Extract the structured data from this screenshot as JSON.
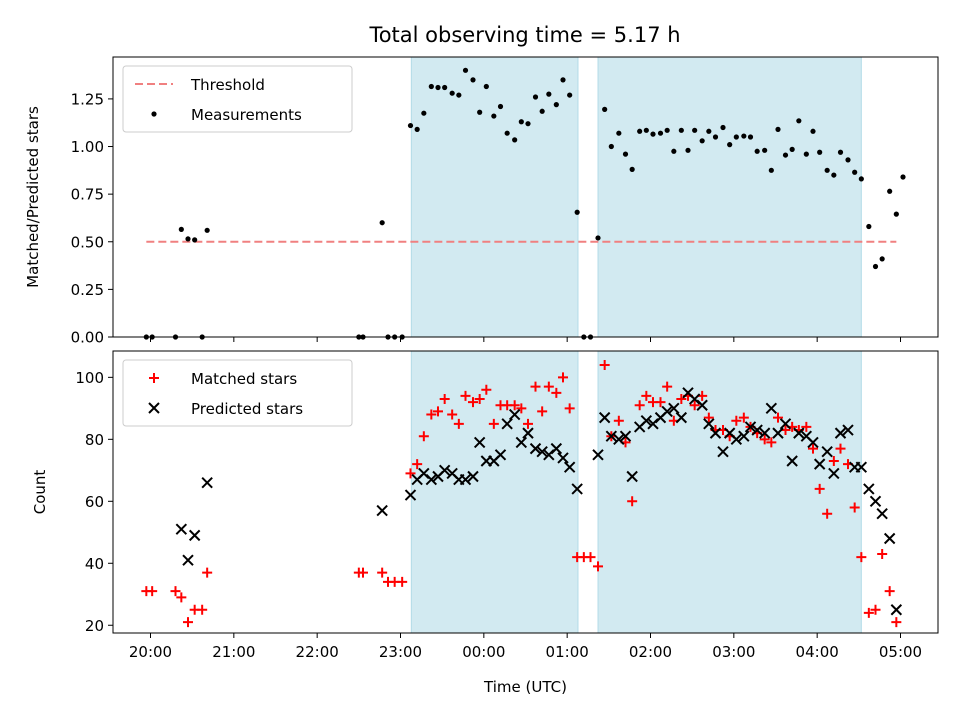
{
  "figure_title": "Total observing time = 5.17 h",
  "chart_data": [
    {
      "type": "scatter",
      "ylabel": "Matched/Predicted stars",
      "xlim": [
        19.55,
        29.45
      ],
      "ylim": [
        0,
        1.47
      ],
      "yticks": [
        0,
        0.25,
        0.5,
        0.75,
        1.0,
        1.25
      ],
      "ytick_labels": [
        "0.00",
        "0.25",
        "0.50",
        "0.75",
        "1.00",
        "1.25"
      ],
      "xticks": [
        20,
        21,
        22,
        23,
        24,
        25,
        26,
        27,
        28,
        29
      ],
      "xtick_labels": [
        "20:00",
        "21:00",
        "22:00",
        "23:00",
        "00:00",
        "01:00",
        "02:00",
        "03:00",
        "04:00",
        "05:00"
      ],
      "show_xtick_labels": false,
      "shaded_intervals": [
        [
          23.13,
          25.13
        ],
        [
          25.37,
          28.53
        ]
      ],
      "shade_color": "#add8e6",
      "legend_position": "upper left",
      "lines": [
        {
          "name": "Threshold",
          "x": [
            19.95,
            28.95
          ],
          "y": [
            0.5,
            0.5
          ],
          "color": "#f08080",
          "style": "dashed"
        }
      ],
      "series": [
        {
          "name": "Measurements",
          "marker": "dot",
          "color": "#000000",
          "points": [
            [
              19.95,
              0.0
            ],
            [
              20.02,
              0.0
            ],
            [
              20.3,
              0.0
            ],
            [
              20.37,
              0.565
            ],
            [
              20.45,
              0.515
            ],
            [
              20.53,
              0.51
            ],
            [
              20.62,
              0.0
            ],
            [
              20.68,
              0.56
            ],
            [
              22.5,
              0.0
            ],
            [
              22.55,
              0.0
            ],
            [
              22.78,
              0.6
            ],
            [
              22.85,
              0.0
            ],
            [
              22.93,
              0.0
            ],
            [
              23.02,
              0.0
            ],
            [
              23.12,
              1.11
            ],
            [
              23.2,
              1.09
            ],
            [
              23.28,
              1.175
            ],
            [
              23.37,
              1.315
            ],
            [
              23.45,
              1.31
            ],
            [
              23.53,
              1.31
            ],
            [
              23.62,
              1.28
            ],
            [
              23.7,
              1.27
            ],
            [
              23.78,
              1.4
            ],
            [
              23.87,
              1.35
            ],
            [
              23.95,
              1.18
            ],
            [
              24.03,
              1.315
            ],
            [
              24.12,
              1.16
            ],
            [
              24.2,
              1.21
            ],
            [
              24.28,
              1.07
            ],
            [
              24.37,
              1.035
            ],
            [
              24.45,
              1.13
            ],
            [
              24.53,
              1.12
            ],
            [
              24.62,
              1.26
            ],
            [
              24.7,
              1.185
            ],
            [
              24.78,
              1.275
            ],
            [
              24.87,
              1.22
            ],
            [
              24.95,
              1.35
            ],
            [
              25.03,
              1.27
            ],
            [
              25.12,
              0.655
            ],
            [
              25.2,
              0.0
            ],
            [
              25.28,
              0.0
            ],
            [
              25.37,
              0.52
            ],
            [
              25.45,
              1.195
            ],
            [
              25.53,
              1.0
            ],
            [
              25.62,
              1.07
            ],
            [
              25.7,
              0.96
            ],
            [
              25.78,
              0.88
            ],
            [
              25.87,
              1.08
            ],
            [
              25.95,
              1.085
            ],
            [
              26.03,
              1.065
            ],
            [
              26.12,
              1.07
            ],
            [
              26.2,
              1.085
            ],
            [
              26.28,
              0.975
            ],
            [
              26.37,
              1.085
            ],
            [
              26.45,
              0.98
            ],
            [
              26.53,
              1.085
            ],
            [
              26.62,
              1.03
            ],
            [
              26.7,
              1.08
            ],
            [
              26.78,
              1.05
            ],
            [
              26.87,
              1.1
            ],
            [
              26.95,
              1.01
            ],
            [
              27.03,
              1.05
            ],
            [
              27.12,
              1.055
            ],
            [
              27.2,
              1.05
            ],
            [
              27.28,
              0.975
            ],
            [
              27.37,
              0.98
            ],
            [
              27.45,
              0.875
            ],
            [
              27.53,
              1.09
            ],
            [
              27.62,
              0.955
            ],
            [
              27.7,
              0.985
            ],
            [
              27.78,
              1.135
            ],
            [
              27.87,
              0.96
            ],
            [
              27.95,
              1.08
            ],
            [
              28.03,
              0.97
            ],
            [
              28.12,
              0.875
            ],
            [
              28.2,
              0.85
            ],
            [
              28.28,
              0.97
            ],
            [
              28.37,
              0.93
            ],
            [
              28.45,
              0.865
            ],
            [
              28.53,
              0.83
            ],
            [
              28.62,
              0.58
            ],
            [
              28.7,
              0.37
            ],
            [
              28.78,
              0.41
            ],
            [
              28.87,
              0.765
            ],
            [
              28.95,
              0.645
            ],
            [
              29.03,
              0.84
            ]
          ]
        }
      ]
    },
    {
      "type": "scatter",
      "xlabel": "Time (UTC)",
      "ylabel": "Count",
      "xlim": [
        19.55,
        29.45
      ],
      "ylim": [
        17.5,
        108.5
      ],
      "yticks": [
        20,
        40,
        60,
        80,
        100
      ],
      "ytick_labels": [
        "20",
        "40",
        "60",
        "80",
        "100"
      ],
      "xticks": [
        20,
        21,
        22,
        23,
        24,
        25,
        26,
        27,
        28,
        29
      ],
      "xtick_labels": [
        "20:00",
        "21:00",
        "22:00",
        "23:00",
        "00:00",
        "01:00",
        "02:00",
        "03:00",
        "04:00",
        "05:00"
      ],
      "show_xtick_labels": true,
      "shaded_intervals": [
        [
          23.13,
          25.13
        ],
        [
          25.37,
          28.53
        ]
      ],
      "shade_color": "#add8e6",
      "legend_position": "upper left",
      "series": [
        {
          "name": "Matched stars",
          "marker": "plus",
          "color": "#ff0000",
          "points": [
            [
              19.95,
              31
            ],
            [
              20.02,
              31
            ],
            [
              20.3,
              31
            ],
            [
              20.37,
              29
            ],
            [
              20.45,
              21
            ],
            [
              20.53,
              25
            ],
            [
              20.62,
              25
            ],
            [
              20.68,
              37
            ],
            [
              22.5,
              37
            ],
            [
              22.55,
              37
            ],
            [
              22.78,
              37
            ],
            [
              22.85,
              34
            ],
            [
              22.93,
              34
            ],
            [
              23.02,
              34
            ],
            [
              23.12,
              69
            ],
            [
              23.2,
              72
            ],
            [
              23.28,
              81
            ],
            [
              23.37,
              88
            ],
            [
              23.45,
              89
            ],
            [
              23.53,
              93
            ],
            [
              23.62,
              88
            ],
            [
              23.7,
              85
            ],
            [
              23.78,
              94
            ],
            [
              23.87,
              92
            ],
            [
              23.95,
              93
            ],
            [
              24.03,
              96
            ],
            [
              24.12,
              85
            ],
            [
              24.2,
              91
            ],
            [
              24.28,
              91
            ],
            [
              24.37,
              91
            ],
            [
              24.45,
              90
            ],
            [
              24.53,
              85
            ],
            [
              24.62,
              97
            ],
            [
              24.7,
              89
            ],
            [
              24.78,
              97
            ],
            [
              24.87,
              95
            ],
            [
              24.95,
              100
            ],
            [
              25.03,
              90
            ],
            [
              25.12,
              42
            ],
            [
              25.2,
              42
            ],
            [
              25.28,
              42
            ],
            [
              25.37,
              39
            ],
            [
              25.45,
              104
            ],
            [
              25.53,
              81
            ],
            [
              25.62,
              86
            ],
            [
              25.7,
              79
            ],
            [
              25.78,
              60
            ],
            [
              25.87,
              91
            ],
            [
              25.95,
              94
            ],
            [
              26.03,
              92
            ],
            [
              26.12,
              92
            ],
            [
              26.2,
              97
            ],
            [
              26.28,
              86
            ],
            [
              26.37,
              93
            ],
            [
              26.45,
              94
            ],
            [
              26.53,
              91
            ],
            [
              26.62,
              94
            ],
            [
              26.7,
              87
            ],
            [
              26.78,
              83
            ],
            [
              26.87,
              83
            ],
            [
              26.95,
              81
            ],
            [
              27.03,
              86
            ],
            [
              27.12,
              87
            ],
            [
              27.2,
              84
            ],
            [
              27.28,
              82
            ],
            [
              27.37,
              80
            ],
            [
              27.45,
              79
            ],
            [
              27.53,
              87
            ],
            [
              27.62,
              83
            ],
            [
              27.7,
              84
            ],
            [
              27.78,
              83
            ],
            [
              27.87,
              84
            ],
            [
              27.95,
              77
            ],
            [
              28.03,
              64
            ],
            [
              28.12,
              56
            ],
            [
              28.2,
              73
            ],
            [
              28.28,
              77
            ],
            [
              28.37,
              72
            ],
            [
              28.45,
              58
            ],
            [
              28.53,
              42
            ],
            [
              28.62,
              24
            ],
            [
              28.7,
              25
            ],
            [
              28.78,
              43
            ],
            [
              28.87,
              31
            ],
            [
              28.95,
              21
            ]
          ]
        },
        {
          "name": "Predicted stars",
          "marker": "x",
          "color": "#000000",
          "points": [
            [
              20.37,
              51
            ],
            [
              20.45,
              41
            ],
            [
              20.53,
              49
            ],
            [
              20.68,
              66
            ],
            [
              22.78,
              57
            ],
            [
              23.12,
              62
            ],
            [
              23.2,
              67
            ],
            [
              23.28,
              69
            ],
            [
              23.37,
              67
            ],
            [
              23.45,
              68
            ],
            [
              23.53,
              70
            ],
            [
              23.62,
              69
            ],
            [
              23.7,
              67
            ],
            [
              23.78,
              67
            ],
            [
              23.87,
              68
            ],
            [
              23.95,
              79
            ],
            [
              24.03,
              73
            ],
            [
              24.12,
              73
            ],
            [
              24.2,
              75
            ],
            [
              24.28,
              85
            ],
            [
              24.37,
              88
            ],
            [
              24.45,
              79
            ],
            [
              24.53,
              82
            ],
            [
              24.62,
              77
            ],
            [
              24.7,
              76
            ],
            [
              24.78,
              75
            ],
            [
              24.87,
              77
            ],
            [
              24.95,
              74
            ],
            [
              25.03,
              71
            ],
            [
              25.12,
              64
            ],
            [
              25.37,
              75
            ],
            [
              25.45,
              87
            ],
            [
              25.53,
              81
            ],
            [
              25.62,
              80
            ],
            [
              25.7,
              81
            ],
            [
              25.78,
              68
            ],
            [
              25.87,
              84
            ],
            [
              25.95,
              86
            ],
            [
              26.03,
              85
            ],
            [
              26.12,
              87
            ],
            [
              26.2,
              89
            ],
            [
              26.28,
              90
            ],
            [
              26.37,
              87
            ],
            [
              26.45,
              95
            ],
            [
              26.53,
              93
            ],
            [
              26.62,
              91
            ],
            [
              26.7,
              85
            ],
            [
              26.78,
              82
            ],
            [
              26.87,
              76
            ],
            [
              26.95,
              82
            ],
            [
              27.03,
              80
            ],
            [
              27.12,
              81
            ],
            [
              27.2,
              84
            ],
            [
              27.28,
              83
            ],
            [
              27.37,
              82
            ],
            [
              27.45,
              90
            ],
            [
              27.53,
              82
            ],
            [
              27.62,
              85
            ],
            [
              27.7,
              73
            ],
            [
              27.78,
              82
            ],
            [
              27.87,
              81
            ],
            [
              27.95,
              79
            ],
            [
              28.03,
              72
            ],
            [
              28.12,
              76
            ],
            [
              28.2,
              69
            ],
            [
              28.28,
              82
            ],
            [
              28.37,
              83
            ],
            [
              28.45,
              71
            ],
            [
              28.53,
              71
            ],
            [
              28.62,
              64
            ],
            [
              28.7,
              60
            ],
            [
              28.78,
              56
            ],
            [
              28.87,
              48
            ],
            [
              28.95,
              25
            ]
          ]
        }
      ]
    }
  ]
}
